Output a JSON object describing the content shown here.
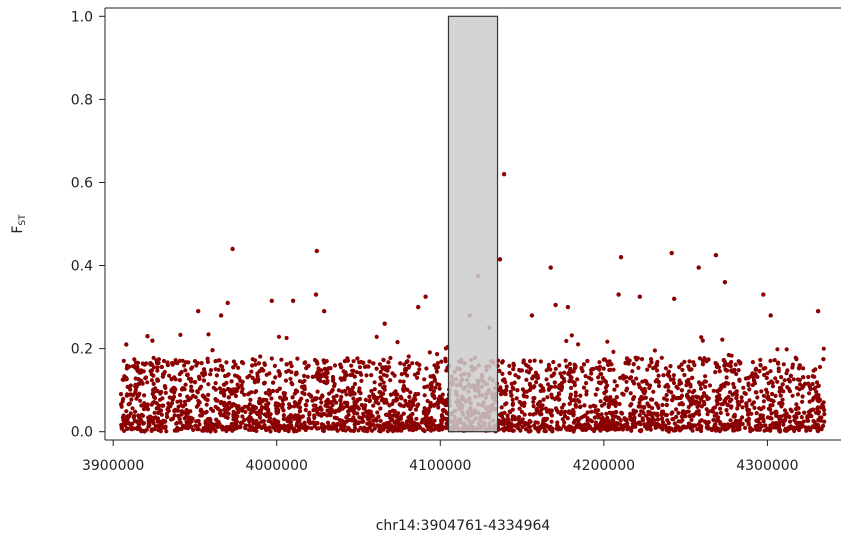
{
  "chart_data": {
    "type": "scatter",
    "title": "",
    "xlabel": "chr14:3904761-4334964",
    "ylabel": "F",
    "ylabel_subscript": "ST",
    "xlim": [
      3895000,
      4345000
    ],
    "ylim": [
      -0.02,
      1.02
    ],
    "x_ticks": [
      3900000,
      4000000,
      4100000,
      4200000,
      4300000
    ],
    "y_ticks": [
      0.0,
      0.2,
      0.4,
      0.6,
      0.8,
      1.0
    ],
    "x_tick_labels": [
      "3900000",
      "4000000",
      "4100000",
      "4200000",
      "4300000"
    ],
    "y_tick_labels": [
      "0.0",
      "0.2",
      "0.4",
      "0.6",
      "0.8",
      "1.0"
    ],
    "grid": false,
    "point_color": "#8b0000",
    "highlight_region": {
      "x_start": 4105000,
      "x_end": 4135000,
      "y_start": 0.0,
      "y_end": 1.0,
      "fill": "#cccccc",
      "stroke": "#333333"
    },
    "x_range": [
      3904761,
      4334964
    ],
    "notable_points": [
      {
        "x": 3973000,
        "y": 0.44
      },
      {
        "x": 4024500,
        "y": 0.435
      },
      {
        "x": 4139000,
        "y": 0.62
      },
      {
        "x": 4136500,
        "y": 0.415
      },
      {
        "x": 4123000,
        "y": 0.375
      },
      {
        "x": 4167500,
        "y": 0.395
      },
      {
        "x": 4210500,
        "y": 0.42
      },
      {
        "x": 4241500,
        "y": 0.43
      },
      {
        "x": 4268500,
        "y": 0.425
      },
      {
        "x": 4258000,
        "y": 0.395
      },
      {
        "x": 4274000,
        "y": 0.36
      },
      {
        "x": 4297500,
        "y": 0.33
      },
      {
        "x": 4302000,
        "y": 0.28
      },
      {
        "x": 4331000,
        "y": 0.29
      },
      {
        "x": 4024000,
        "y": 0.33
      },
      {
        "x": 3997000,
        "y": 0.315
      },
      {
        "x": 4010000,
        "y": 0.315
      },
      {
        "x": 4086500,
        "y": 0.3
      },
      {
        "x": 4091000,
        "y": 0.325
      },
      {
        "x": 4170500,
        "y": 0.305
      },
      {
        "x": 4178000,
        "y": 0.3
      },
      {
        "x": 4222000,
        "y": 0.325
      },
      {
        "x": 4243000,
        "y": 0.32
      },
      {
        "x": 3952000,
        "y": 0.29
      },
      {
        "x": 3970000,
        "y": 0.31
      },
      {
        "x": 3966000,
        "y": 0.28
      },
      {
        "x": 4029000,
        "y": 0.29
      },
      {
        "x": 4156000,
        "y": 0.28
      },
      {
        "x": 4118000,
        "y": 0.28
      },
      {
        "x": 4209000,
        "y": 0.33
      },
      {
        "x": 4130000,
        "y": 0.25
      },
      {
        "x": 4066000,
        "y": 0.26
      },
      {
        "x": 3908000,
        "y": 0.21
      },
      {
        "x": 3921000,
        "y": 0.23
      }
    ],
    "background_band": {
      "count": 3600,
      "y_max_typical": 0.2,
      "y_min": 0.0
    }
  }
}
